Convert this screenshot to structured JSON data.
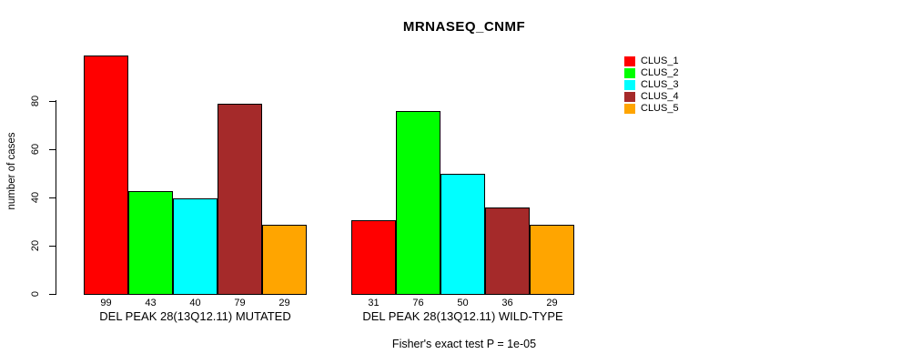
{
  "chart_data": {
    "type": "bar",
    "title": "MRNASEQ_CNMF",
    "ylabel": "number of cases",
    "xlabel": "",
    "ylim": [
      0,
      99
    ],
    "yticks": [
      0,
      20,
      40,
      60,
      80
    ],
    "grid": false,
    "legend_position": "right",
    "bar_borders": "#000000",
    "categories": [
      "DEL PEAK 28(13Q12.11) MUTATED",
      "DEL PEAK 28(13Q12.11) WILD-TYPE"
    ],
    "series": [
      {
        "name": "CLUS_1",
        "color": "#FF0000",
        "values": [
          99,
          31
        ]
      },
      {
        "name": "CLUS_2",
        "color": "#00FF00",
        "values": [
          43,
          76
        ]
      },
      {
        "name": "CLUS_3",
        "color": "#00FFFF",
        "values": [
          40,
          50
        ]
      },
      {
        "name": "CLUS_4",
        "color": "#A52A2A",
        "values": [
          79,
          36
        ]
      },
      {
        "name": "CLUS_5",
        "color": "#FFA500",
        "values": [
          29,
          29
        ]
      }
    ],
    "bar_value_labels": [
      [
        "99",
        "43",
        "40",
        "79",
        "29"
      ],
      [
        "31",
        "76",
        "50",
        "36",
        "29"
      ]
    ],
    "annotation": "Fisher's exact test P = 1e-05"
  }
}
